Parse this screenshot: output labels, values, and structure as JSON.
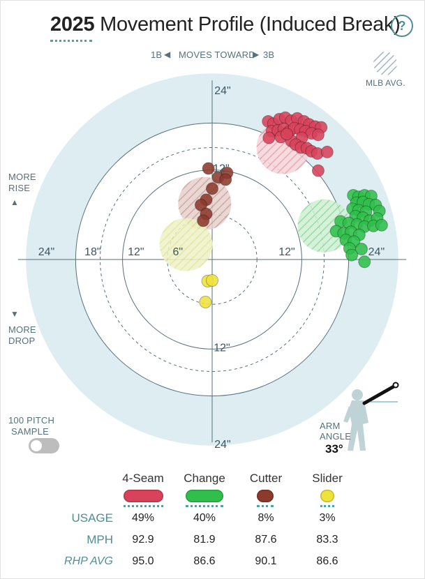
{
  "header": {
    "year": "2025",
    "title": "Movement Profile (Induced Break)",
    "help_label": "?"
  },
  "plot_labels": {
    "top_left": "1B",
    "top_mid": "MOVES TOWARD",
    "top_right": "3B",
    "more_rise_1": "MORE",
    "more_rise_2": "RISE",
    "more_drop_1": "MORE",
    "more_drop_2": "DROP",
    "mlb_avg": "MLB AVG.",
    "sample_1": "100 PITCH",
    "sample_2": "SAMPLE",
    "arm_angle_1": "ARM",
    "arm_angle_2": "ANGLE",
    "arm_angle_value": "33°"
  },
  "colors": {
    "fourseam": "#d8425a",
    "change": "#2fbf4a",
    "cutter": "#8b3a2c",
    "slider": "#eee33b",
    "ring_fill": "#deedf1",
    "accent": "#4f8e95"
  },
  "table": {
    "pitches": [
      "4-Seam",
      "Change",
      "Cutter",
      "Slider"
    ],
    "rows": [
      {
        "label": "USAGE",
        "values": [
          "49%",
          "40%",
          "8%",
          "3%"
        ]
      },
      {
        "label": "MPH",
        "values": [
          "92.9",
          "81.9",
          "87.6",
          "83.3"
        ]
      },
      {
        "label": "RHP AVG",
        "values": [
          "95.0",
          "86.6",
          "90.1",
          "86.6"
        ]
      }
    ]
  },
  "chart_data": {
    "type": "scatter",
    "title": "2025 Movement Profile (Induced Break)",
    "xlabel": "1B ◀ MOVES TOWARD ▶ 3B",
    "ylabel": "MORE RISE / MORE DROP",
    "xlim": [
      -24,
      24
    ],
    "ylim": [
      -24,
      24
    ],
    "ring_labels": [
      "6\"",
      "12\"",
      "18\"",
      "24\""
    ],
    "ring_values": [
      6,
      12,
      18,
      24
    ],
    "axis_labels": {
      "up_12": "12\"",
      "up_24": "24\"",
      "down_12": "12\"",
      "down_24": "24\"",
      "left_24": "24\"",
      "left_18": "18\"",
      "left_12": "12\"",
      "left_6": "6\"",
      "right_12": "12\"",
      "right_24": "24\""
    },
    "series": [
      {
        "name": "4-Seam",
        "color": "#d8425a",
        "mlb_avg": [
          9.5,
          15
        ],
        "points": [
          [
            7.5,
            18.5
          ],
          [
            8.2,
            18.2
          ],
          [
            9.0,
            18.8
          ],
          [
            9.8,
            19.0
          ],
          [
            10.6,
            18.6
          ],
          [
            11.4,
            18.9
          ],
          [
            12.3,
            18.5
          ],
          [
            13.0,
            18.1
          ],
          [
            13.8,
            17.8
          ],
          [
            14.6,
            17.7
          ],
          [
            8.0,
            17.2
          ],
          [
            8.8,
            17.3
          ],
          [
            9.6,
            17.5
          ],
          [
            10.3,
            17.1
          ],
          [
            11.0,
            17.6
          ],
          [
            11.8,
            17.4
          ],
          [
            12.5,
            17.2
          ],
          [
            13.3,
            16.9
          ],
          [
            14.2,
            16.7
          ],
          [
            12.0,
            16.3
          ],
          [
            7.6,
            16.3
          ],
          [
            9.2,
            16.4
          ],
          [
            10.6,
            15.9
          ],
          [
            11.2,
            15.4
          ],
          [
            11.9,
            15.0
          ],
          [
            12.7,
            14.9
          ],
          [
            13.3,
            14.5
          ],
          [
            14.1,
            14.2
          ],
          [
            15.4,
            14.4
          ],
          [
            14.2,
            11.9
          ],
          [
            10.0,
            16.8
          ]
        ]
      },
      {
        "name": "Change",
        "color": "#2fbf4a",
        "mlb_avg": [
          15,
          4.5
        ],
        "points": [
          [
            18.9,
            8.6
          ],
          [
            19.6,
            8.4
          ],
          [
            20.4,
            8.6
          ],
          [
            21.3,
            8.5
          ],
          [
            19.3,
            7.6
          ],
          [
            20.2,
            7.7
          ],
          [
            21.0,
            7.4
          ],
          [
            21.9,
            7.3
          ],
          [
            18.8,
            6.8
          ],
          [
            19.6,
            6.6
          ],
          [
            20.6,
            6.4
          ],
          [
            22.4,
            6.5
          ],
          [
            19.2,
            5.8
          ],
          [
            20.2,
            5.6
          ],
          [
            21.1,
            5.2
          ],
          [
            22.1,
            5.5
          ],
          [
            17.2,
            5.1
          ],
          [
            18.3,
            4.9
          ],
          [
            19.4,
            4.7
          ],
          [
            20.4,
            4.4
          ],
          [
            21.6,
            4.5
          ],
          [
            22.7,
            4.6
          ],
          [
            16.6,
            3.8
          ],
          [
            17.6,
            3.5
          ],
          [
            18.6,
            3.7
          ],
          [
            19.7,
            3.3
          ],
          [
            17.9,
            2.6
          ],
          [
            19.0,
            2.4
          ],
          [
            18.4,
            1.5
          ],
          [
            20.0,
            1.4
          ],
          [
            18.7,
            0.6
          ],
          [
            20.4,
            -0.3
          ]
        ]
      },
      {
        "name": "Cutter",
        "color": "#8b3a2c",
        "mlb_avg": [
          -1,
          7.5
        ],
        "points": [
          [
            -0.5,
            12.2
          ],
          [
            0.8,
            11.0
          ],
          [
            2.0,
            11.6
          ],
          [
            1.8,
            10.7
          ],
          [
            0.0,
            9.5
          ],
          [
            -0.8,
            8.0
          ],
          [
            -1.5,
            7.3
          ],
          [
            -0.8,
            6.1
          ],
          [
            -1.2,
            5.2
          ]
        ]
      },
      {
        "name": "Slider",
        "color": "#eee33b",
        "mlb_avg": [
          -3.5,
          2
        ],
        "points": [
          [
            -0.6,
            -2.9
          ],
          [
            0.0,
            -2.8
          ],
          [
            -0.9,
            -5.7
          ]
        ]
      }
    ]
  }
}
